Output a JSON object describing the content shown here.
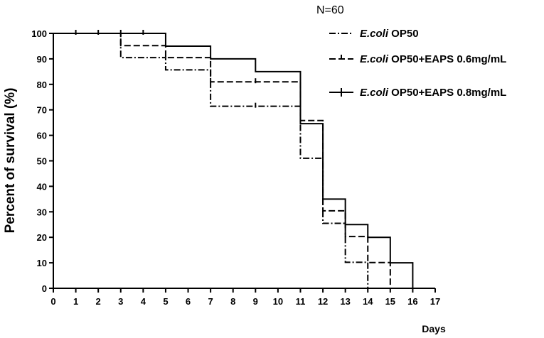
{
  "chart_data": {
    "type": "line",
    "subtype": "kaplan-meier-step",
    "annotation": "N=60",
    "xlabel": "Days",
    "ylabel": "Percent  of survival (%)",
    "xlim": [
      0,
      17
    ],
    "ylim": [
      0,
      100
    ],
    "xticks": [
      0,
      1,
      2,
      3,
      4,
      5,
      6,
      7,
      8,
      9,
      10,
      11,
      12,
      13,
      14,
      15,
      16,
      17
    ],
    "yticks": [
      0,
      10,
      20,
      30,
      40,
      50,
      60,
      70,
      80,
      90,
      100
    ],
    "grid": false,
    "legend_position": "top-right",
    "series": [
      {
        "legend_italic": "E.coli",
        "legend_rest": " OP50",
        "line_style": "dash-dot",
        "color": "#000000",
        "steps": [
          [
            0,
            100
          ],
          [
            3,
            90.5
          ],
          [
            5,
            85.7
          ],
          [
            7,
            71.4
          ],
          [
            11,
            51
          ],
          [
            12,
            25.5
          ],
          [
            13,
            10.2
          ],
          [
            14,
            0
          ]
        ]
      },
      {
        "legend_italic": "E.coli",
        "legend_rest": " OP50+EAPS 0.6mg/mL",
        "line_style": "dashed",
        "color": "#000000",
        "steps": [
          [
            0,
            100
          ],
          [
            3,
            95.2
          ],
          [
            5,
            90.5
          ],
          [
            7,
            81
          ],
          [
            11,
            65.8
          ],
          [
            12,
            30.4
          ],
          [
            13,
            20.3
          ],
          [
            14,
            10.1
          ],
          [
            15,
            0
          ]
        ]
      },
      {
        "legend_italic": "E.coli",
        "legend_rest": " OP50+EAPS 0.8mg/mL",
        "line_style": "solid",
        "color": "#000000",
        "steps": [
          [
            0,
            100
          ],
          [
            5,
            95
          ],
          [
            7,
            90
          ],
          [
            9,
            85
          ],
          [
            11,
            64.6
          ],
          [
            12,
            35
          ],
          [
            13,
            25
          ],
          [
            14,
            20
          ],
          [
            15,
            10
          ],
          [
            16,
            0
          ]
        ]
      }
    ],
    "censor_marks": [
      {
        "series": 2,
        "x": 1,
        "y": 100
      },
      {
        "series": 2,
        "x": 2,
        "y": 100
      },
      {
        "series": 2,
        "x": 3,
        "y": 100
      },
      {
        "series": 2,
        "x": 4,
        "y": 100
      },
      {
        "series": 0,
        "x": 9,
        "y": 71.4
      },
      {
        "series": 1,
        "x": 9,
        "y": 81
      }
    ]
  }
}
